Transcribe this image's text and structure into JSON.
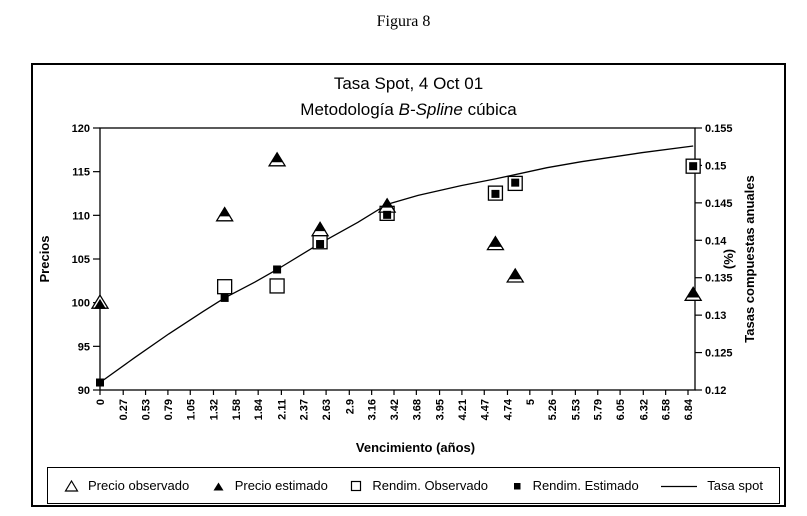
{
  "figure": {
    "caption": "Figura 8"
  },
  "colors": {
    "foreground": "#000000",
    "background": "#ffffff"
  },
  "chart_data": {
    "type": "line",
    "title": "Tasa Spot, 4 Oct 01",
    "subtitle": {
      "pre": "Metodología ",
      "italic": "B-Spline",
      "post": " cúbica"
    },
    "xlabel": "Vencimiento (años)",
    "ylabel_left": "Precios",
    "ylabel_right_main": "Tasas compuestas anuales",
    "ylabel_right_unit": "(%)",
    "grid": false,
    "legend_position": "bottom",
    "x_max": 6.92,
    "x_tick_labels": [
      "0",
      "0.27",
      "0.53",
      "0.79",
      "1.05",
      "1.32",
      "1.58",
      "1.84",
      "2.11",
      "2.37",
      "2.63",
      "2.9",
      "3.16",
      "3.42",
      "3.68",
      "3.95",
      "4.21",
      "4.47",
      "4.74",
      "5",
      "5.26",
      "5.53",
      "5.79",
      "6.05",
      "6.32",
      "6.58",
      "6.84"
    ],
    "y_left": {
      "min": 90,
      "max": 120,
      "tick_labels": [
        "90",
        "95",
        "100",
        "105",
        "110",
        "115",
        "120"
      ]
    },
    "y_right": {
      "min": 0.12,
      "max": 0.155,
      "tick_labels": [
        "0.12",
        "0.125",
        "0.13",
        "0.135",
        "0.14",
        "0.145",
        "0.15",
        "0.155"
      ]
    },
    "series": [
      {
        "name": "Precio observado",
        "marker": "triangle-open",
        "axis": "left",
        "points": [
          [
            0,
            100.0
          ],
          [
            1.45,
            110.0
          ],
          [
            2.06,
            116.3
          ],
          [
            2.56,
            108.3
          ],
          [
            3.34,
            111.0
          ],
          [
            4.6,
            106.7
          ],
          [
            4.83,
            103.0
          ],
          [
            6.9,
            100.9
          ]
        ]
      },
      {
        "name": "Precio estimado",
        "marker": "triangle-filled",
        "axis": "left",
        "points": [
          [
            0,
            99.8
          ],
          [
            1.45,
            110.4
          ],
          [
            2.06,
            116.6
          ],
          [
            2.56,
            108.7
          ],
          [
            3.34,
            111.4
          ],
          [
            4.6,
            106.9
          ],
          [
            4.83,
            103.2
          ],
          [
            6.9,
            101.1
          ]
        ]
      },
      {
        "name": "Rendim. Observado",
        "marker": "square-open",
        "axis": "right",
        "points": [
          [
            1.45,
            0.1338
          ],
          [
            2.06,
            0.1339
          ],
          [
            2.56,
            0.1398
          ],
          [
            3.34,
            0.1436
          ],
          [
            4.6,
            0.1463
          ],
          [
            4.83,
            0.1476
          ],
          [
            6.9,
            0.1499
          ]
        ]
      },
      {
        "name": "Rendim. Estimado",
        "marker": "square-filled",
        "axis": "right",
        "points": [
          [
            0,
            0.121
          ],
          [
            1.45,
            0.1323
          ],
          [
            2.06,
            0.1361
          ],
          [
            2.56,
            0.1395
          ],
          [
            3.34,
            0.1434
          ],
          [
            4.6,
            0.1462
          ],
          [
            4.83,
            0.1477
          ],
          [
            6.9,
            0.1499
          ]
        ]
      },
      {
        "name": "Tasa spot",
        "marker": "line",
        "axis": "right",
        "points": [
          [
            0,
            0.121
          ],
          [
            0.4,
            0.1243
          ],
          [
            0.8,
            0.1275
          ],
          [
            1.2,
            0.1305
          ],
          [
            1.45,
            0.1323
          ],
          [
            1.8,
            0.1344
          ],
          [
            2.06,
            0.1361
          ],
          [
            2.56,
            0.1396
          ],
          [
            3.0,
            0.1424
          ],
          [
            3.34,
            0.1448
          ],
          [
            3.7,
            0.146
          ],
          [
            4.2,
            0.1473
          ],
          [
            4.6,
            0.1482
          ],
          [
            5.2,
            0.1497
          ],
          [
            5.6,
            0.1505
          ],
          [
            6.3,
            0.1517
          ],
          [
            6.9,
            0.1526
          ]
        ]
      }
    ]
  }
}
